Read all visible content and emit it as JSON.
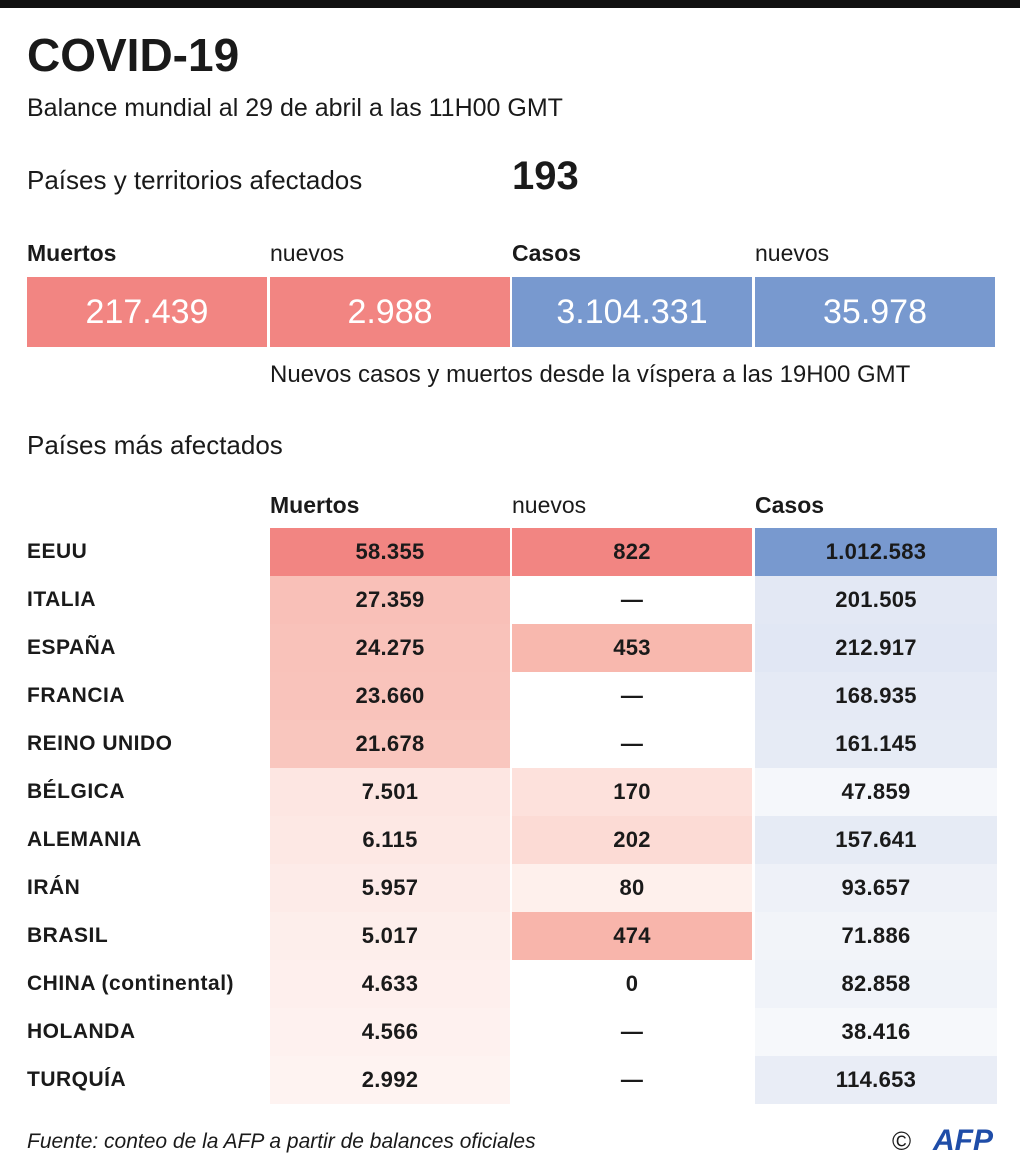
{
  "header": {
    "title": "COVID-19",
    "subtitle": "Balance mundial al 29 de abril a las 11H00 GMT"
  },
  "countries_affected": {
    "label": "Países y territorios afectados",
    "value": "193"
  },
  "summary": {
    "columns": [
      {
        "label": "Muertos",
        "value": "217.439",
        "color": "#f28582",
        "bold": true
      },
      {
        "label": "nuevos",
        "value": "2.988",
        "color": "#f28582",
        "bold": false
      },
      {
        "label": "Casos",
        "value": "3.104.331",
        "color": "#7899cf",
        "bold": true
      },
      {
        "label": "nuevos",
        "value": "35.978",
        "color": "#7899cf",
        "bold": false
      }
    ],
    "note": "Nuevos casos y muertos desde la víspera a las 19H00 GMT"
  },
  "table": {
    "title": "Países más afectados",
    "headers": [
      {
        "text": "Muertos",
        "bold": true
      },
      {
        "text": "nuevos",
        "bold": false
      },
      {
        "text": "Casos",
        "bold": true
      }
    ],
    "rows": [
      {
        "country": "EEUU",
        "cells": [
          {
            "text": "58.355",
            "color": "#f28582"
          },
          {
            "text": "822",
            "color": "#f28582"
          },
          {
            "text": "1.012.583",
            "color": "#7899cf"
          }
        ]
      },
      {
        "country": "ITALIA",
        "cells": [
          {
            "text": "27.359",
            "color": "#f9c0b8"
          },
          {
            "text": "—",
            "color": "#ffffff"
          },
          {
            "text": "201.505",
            "color": "#e3e8f4"
          }
        ]
      },
      {
        "country": "ESPAÑA",
        "cells": [
          {
            "text": "24.275",
            "color": "#f9c2ba"
          },
          {
            "text": "453",
            "color": "#f8b8ae"
          },
          {
            "text": "212.917",
            "color": "#e1e7f4"
          }
        ]
      },
      {
        "country": "FRANCIA",
        "cells": [
          {
            "text": "23.660",
            "color": "#f9c3bb"
          },
          {
            "text": "—",
            "color": "#ffffff"
          },
          {
            "text": "168.935",
            "color": "#e5eaf5"
          }
        ]
      },
      {
        "country": "REINO UNIDO",
        "cells": [
          {
            "text": "21.678",
            "color": "#f9c6be"
          },
          {
            "text": "—",
            "color": "#ffffff"
          },
          {
            "text": "161.145",
            "color": "#e6ebf5"
          }
        ]
      },
      {
        "country": "BÉLGICA",
        "cells": [
          {
            "text": "7.501",
            "color": "#fde6e2"
          },
          {
            "text": "170",
            "color": "#fde1dc"
          },
          {
            "text": "47.859",
            "color": "#f5f7fb"
          }
        ]
      },
      {
        "country": "ALEMANIA",
        "cells": [
          {
            "text": "6.115",
            "color": "#fde8e4"
          },
          {
            "text": "202",
            "color": "#fcdbd5"
          },
          {
            "text": "157.641",
            "color": "#e6ebf5"
          }
        ]
      },
      {
        "country": "IRÁN",
        "cells": [
          {
            "text": "5.957",
            "color": "#fdebe8"
          },
          {
            "text": "80",
            "color": "#fef0ec"
          },
          {
            "text": "93.657",
            "color": "#eef1f8"
          }
        ]
      },
      {
        "country": "BRASIL",
        "cells": [
          {
            "text": "5.017",
            "color": "#fdeeeb"
          },
          {
            "text": "474",
            "color": "#f8b5ab"
          },
          {
            "text": "71.886",
            "color": "#f2f4f9"
          }
        ]
      },
      {
        "country": "CHINA (continental)",
        "cells": [
          {
            "text": "4.633",
            "color": "#feefed"
          },
          {
            "text": "0",
            "color": "#ffffff"
          },
          {
            "text": "82.858",
            "color": "#f0f3f9"
          }
        ]
      },
      {
        "country": "HOLANDA",
        "cells": [
          {
            "text": "4.566",
            "color": "#fef1ef"
          },
          {
            "text": "—",
            "color": "#ffffff"
          },
          {
            "text": "38.416",
            "color": "#f6f8fb"
          }
        ]
      },
      {
        "country": "TURQUÍA",
        "cells": [
          {
            "text": "2.992",
            "color": "#fef3f1"
          },
          {
            "text": "—",
            "color": "#ffffff"
          },
          {
            "text": "114.653",
            "color": "#e9edf6"
          }
        ]
      }
    ]
  },
  "footer": {
    "source": "Fuente: conteo de la AFP a partir de balances oficiales",
    "copyright": "©",
    "logo": "AFP"
  }
}
